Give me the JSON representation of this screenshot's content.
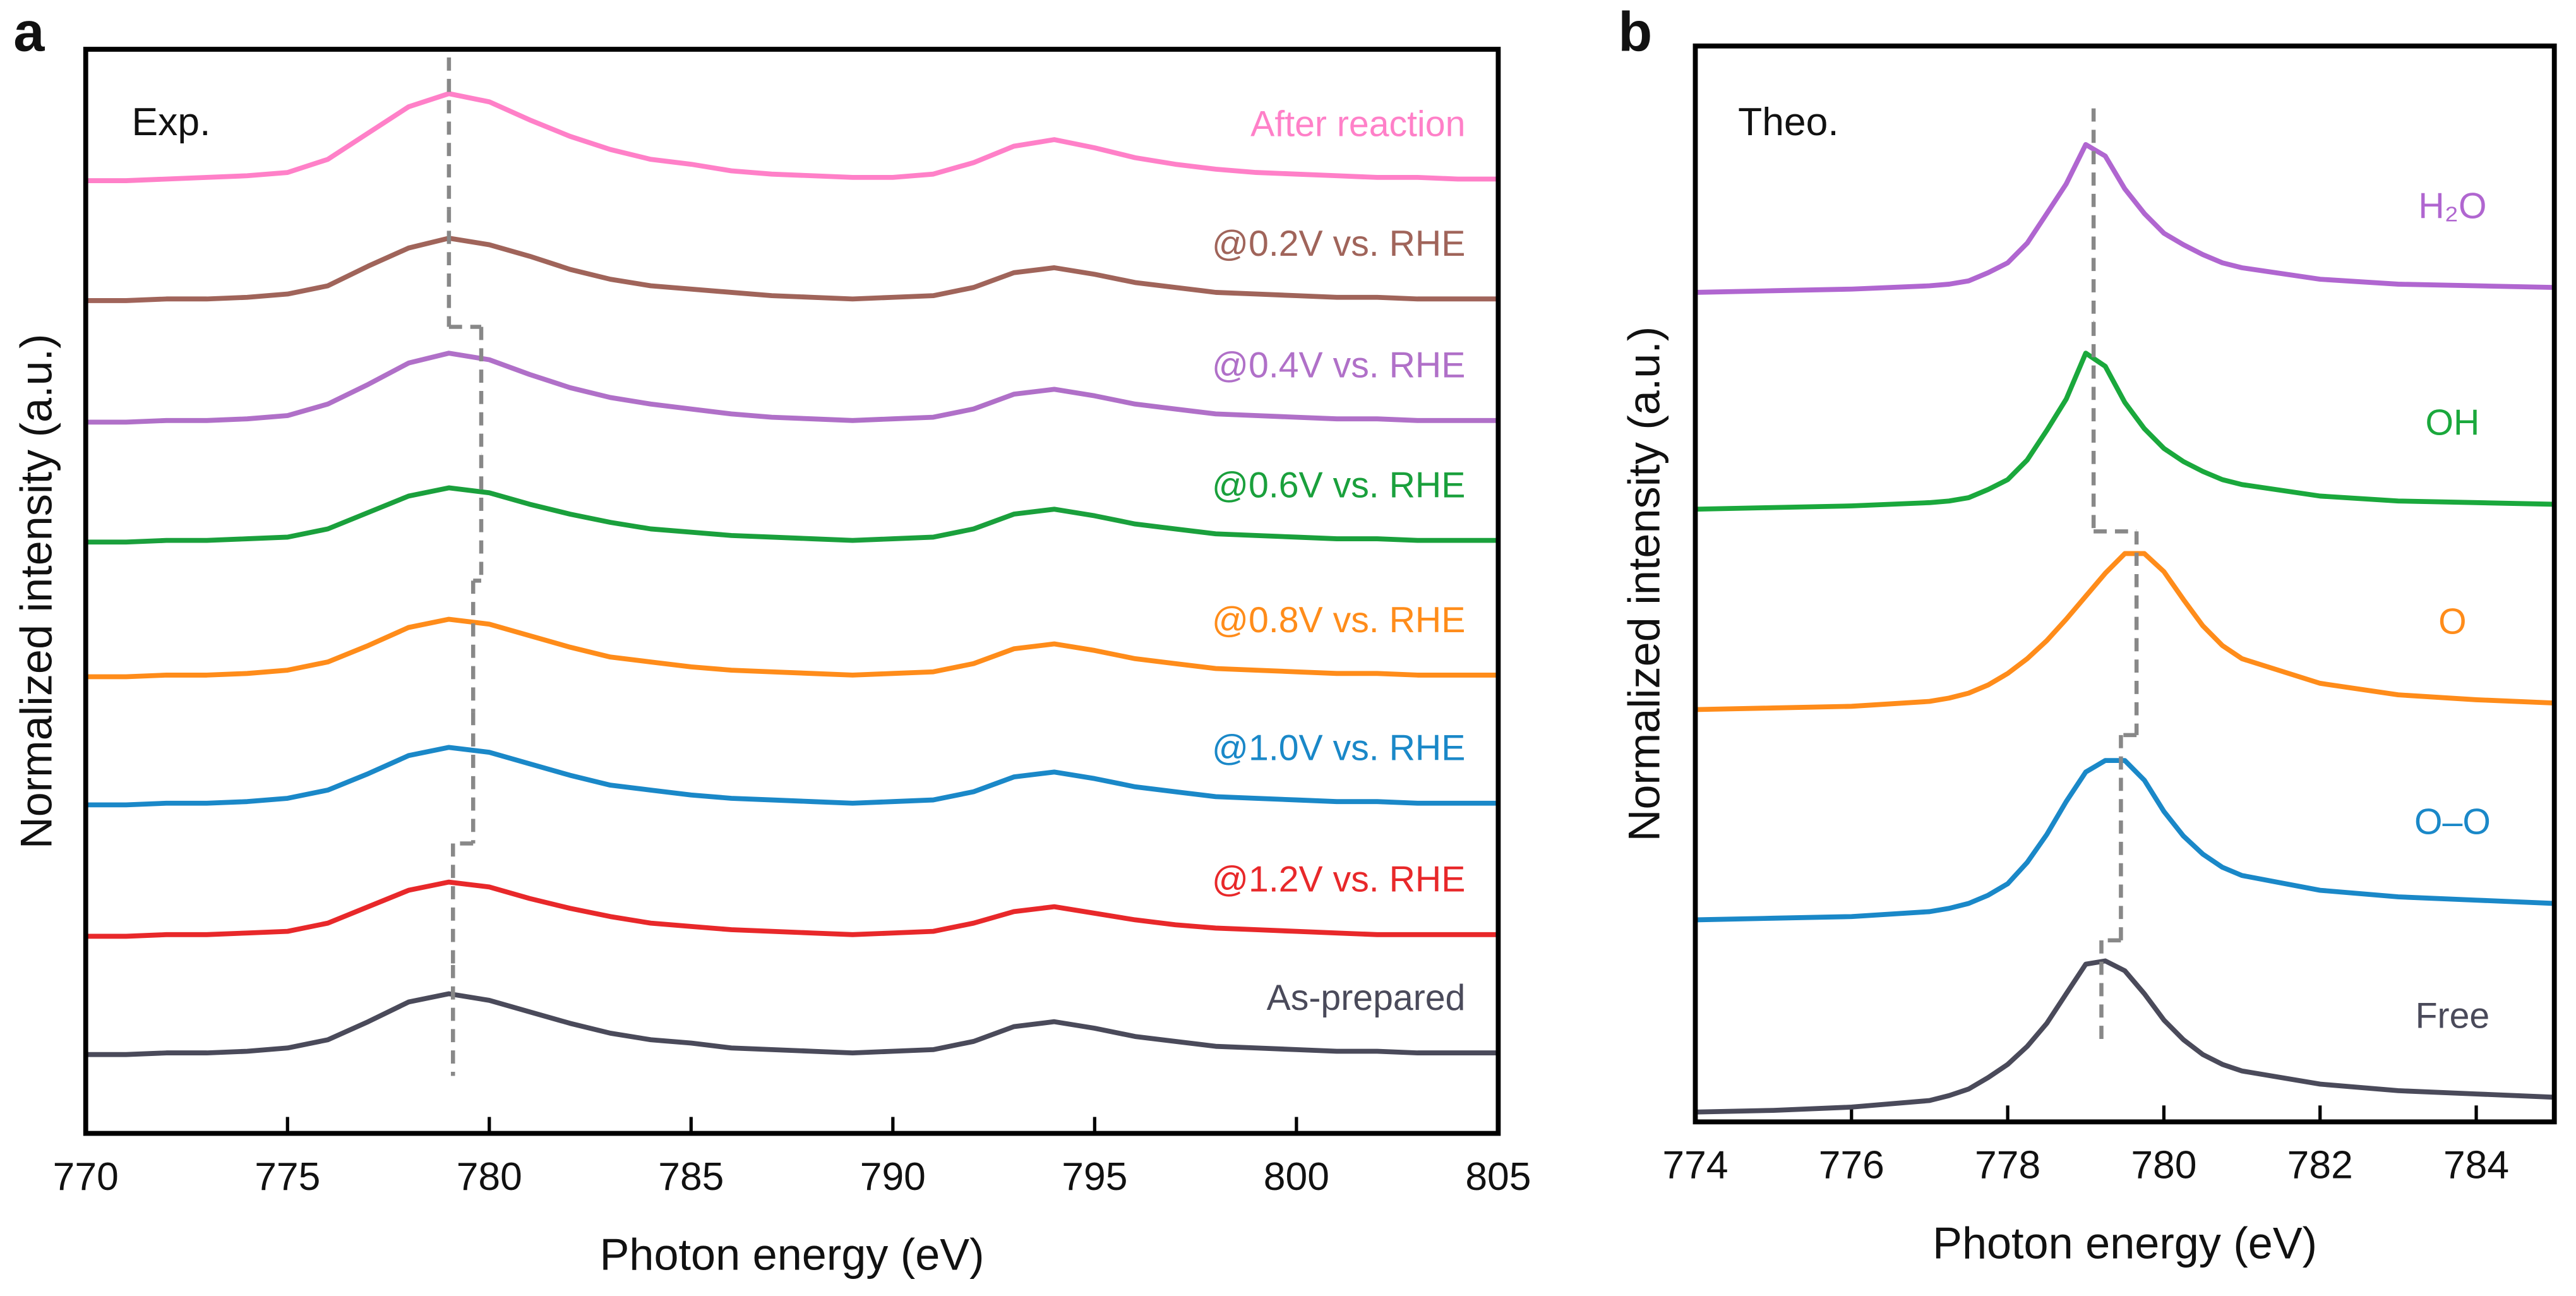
{
  "chart_data": [
    {
      "type": "line",
      "panel_label": "a",
      "annotation": "Exp.",
      "xlabel": "Photon energy (eV)",
      "ylabel": "Normalized intensity (a.u.)",
      "xlim": [
        770,
        805
      ],
      "ylim": [
        0,
        66
      ],
      "xticks": [
        770,
        775,
        780,
        785,
        790,
        795,
        800,
        805
      ],
      "x": [
        770,
        771,
        772,
        773,
        774,
        775,
        776,
        777,
        778,
        779,
        780,
        781,
        782,
        783,
        784,
        785,
        786,
        787,
        788,
        789,
        790,
        791,
        792,
        793,
        794,
        795,
        796,
        797,
        798,
        799,
        800,
        801,
        802,
        803,
        804,
        805
      ],
      "series": [
        {
          "name": "After reaction",
          "color": "#ff80c8",
          "peak_energy": 779.0,
          "values": [
            58.0,
            58.0,
            58.1,
            58.2,
            58.3,
            58.5,
            59.3,
            60.9,
            62.5,
            63.3,
            62.8,
            61.7,
            60.7,
            59.9,
            59.3,
            59.0,
            58.6,
            58.4,
            58.3,
            58.2,
            58.2,
            58.4,
            59.1,
            60.1,
            60.5,
            60.0,
            59.4,
            59.0,
            58.7,
            58.5,
            58.4,
            58.3,
            58.2,
            58.2,
            58.1,
            58.1
          ]
        },
        {
          "name": "@0.2V vs. RHE",
          "color": "#a0645a",
          "peak_energy": 779.0,
          "values": [
            50.7,
            50.7,
            50.8,
            50.8,
            50.9,
            51.1,
            51.6,
            52.8,
            53.9,
            54.5,
            54.1,
            53.4,
            52.6,
            52.0,
            51.6,
            51.4,
            51.2,
            51.0,
            50.9,
            50.8,
            50.9,
            51.0,
            51.5,
            52.4,
            52.7,
            52.3,
            51.8,
            51.5,
            51.2,
            51.1,
            51.0,
            50.9,
            50.9,
            50.8,
            50.8,
            50.8
          ]
        },
        {
          "name": "@0.4V vs. RHE",
          "color": "#b070c8",
          "peak_energy": 779.8,
          "values": [
            43.3,
            43.3,
            43.4,
            43.4,
            43.5,
            43.7,
            44.4,
            45.6,
            46.9,
            47.5,
            47.1,
            46.2,
            45.4,
            44.8,
            44.4,
            44.1,
            43.8,
            43.6,
            43.5,
            43.4,
            43.5,
            43.6,
            44.1,
            45.0,
            45.3,
            44.9,
            44.4,
            44.1,
            43.8,
            43.7,
            43.6,
            43.5,
            43.5,
            43.4,
            43.4,
            43.4
          ]
        },
        {
          "name": "@0.6V vs. RHE",
          "color": "#1aa03c",
          "peak_energy": 779.8,
          "values": [
            36.0,
            36.0,
            36.1,
            36.1,
            36.2,
            36.3,
            36.8,
            37.8,
            38.8,
            39.3,
            39.0,
            38.3,
            37.7,
            37.2,
            36.8,
            36.6,
            36.4,
            36.3,
            36.2,
            36.1,
            36.2,
            36.3,
            36.8,
            37.7,
            38.0,
            37.6,
            37.1,
            36.8,
            36.5,
            36.4,
            36.3,
            36.2,
            36.2,
            36.1,
            36.1,
            36.1
          ]
        },
        {
          "name": "@0.8V vs. RHE",
          "color": "#ff8c1a",
          "peak_energy": 779.6,
          "values": [
            27.8,
            27.8,
            27.9,
            27.9,
            28.0,
            28.2,
            28.7,
            29.7,
            30.8,
            31.3,
            31.0,
            30.3,
            29.6,
            29.0,
            28.7,
            28.4,
            28.2,
            28.1,
            28.0,
            27.9,
            28.0,
            28.1,
            28.6,
            29.5,
            29.8,
            29.4,
            28.9,
            28.6,
            28.3,
            28.2,
            28.1,
            28.0,
            28.0,
            27.9,
            27.9,
            27.9
          ]
        },
        {
          "name": "@1.0V vs. RHE",
          "color": "#1a88c8",
          "peak_energy": 779.6,
          "values": [
            20.0,
            20.0,
            20.1,
            20.1,
            20.2,
            20.4,
            20.9,
            21.9,
            23.0,
            23.5,
            23.2,
            22.5,
            21.8,
            21.2,
            20.9,
            20.6,
            20.4,
            20.3,
            20.2,
            20.1,
            20.2,
            20.3,
            20.8,
            21.7,
            22.0,
            21.6,
            21.1,
            20.8,
            20.5,
            20.4,
            20.3,
            20.2,
            20.2,
            20.1,
            20.1,
            20.1
          ]
        },
        {
          "name": "@1.2V vs. RHE",
          "color": "#e8282a",
          "peak_energy": 779.1,
          "values": [
            12.0,
            12.0,
            12.1,
            12.1,
            12.2,
            12.3,
            12.8,
            13.8,
            14.8,
            15.3,
            15.0,
            14.3,
            13.7,
            13.2,
            12.8,
            12.6,
            12.4,
            12.3,
            12.2,
            12.1,
            12.2,
            12.3,
            12.8,
            13.5,
            13.8,
            13.4,
            13.0,
            12.7,
            12.5,
            12.4,
            12.3,
            12.2,
            12.1,
            12.1,
            12.1,
            12.1
          ]
        },
        {
          "name": "As-prepared",
          "color": "#4a4a5a",
          "peak_energy": 779.1,
          "values": [
            4.8,
            4.8,
            4.9,
            4.9,
            5.0,
            5.2,
            5.7,
            6.8,
            8.0,
            8.5,
            8.1,
            7.4,
            6.7,
            6.1,
            5.7,
            5.5,
            5.2,
            5.1,
            5.0,
            4.9,
            5.0,
            5.1,
            5.6,
            6.5,
            6.8,
            6.4,
            5.9,
            5.6,
            5.3,
            5.2,
            5.1,
            5.0,
            5.0,
            4.9,
            4.9,
            4.9
          ]
        }
      ]
    },
    {
      "type": "line",
      "panel_label": "b",
      "annotation": "Theo.",
      "xlabel": "Photon energy (eV)",
      "ylabel": "Normalized intensity (a.u.)",
      "xlim": [
        774,
        785
      ],
      "ylim": [
        0,
        65.5
      ],
      "xticks": [
        774,
        776,
        778,
        780,
        782,
        784
      ],
      "x": [
        774,
        775,
        776,
        777,
        777.25,
        777.5,
        777.75,
        778,
        778.25,
        778.5,
        778.75,
        779,
        779.25,
        779.5,
        779.75,
        780,
        780.25,
        780.5,
        780.75,
        781,
        782,
        783,
        784,
        785
      ],
      "series": [
        {
          "name": "H₂O",
          "color": "#b066d0",
          "peak_energy": 779.1,
          "values": [
            50.5,
            50.6,
            50.7,
            50.9,
            51.0,
            51.2,
            51.7,
            52.3,
            53.5,
            55.3,
            57.1,
            59.5,
            58.8,
            56.8,
            55.3,
            54.1,
            53.4,
            52.8,
            52.3,
            52.0,
            51.3,
            51.0,
            50.9,
            50.8
          ]
        },
        {
          "name": "OH",
          "color": "#1aa83c",
          "peak_energy": 779.1,
          "values": [
            37.3,
            37.4,
            37.5,
            37.7,
            37.8,
            38.0,
            38.5,
            39.1,
            40.3,
            42.1,
            44.0,
            46.8,
            46.0,
            43.8,
            42.2,
            41.0,
            40.2,
            39.6,
            39.1,
            38.8,
            38.1,
            37.8,
            37.7,
            37.6
          ]
        },
        {
          "name": "O",
          "color": "#ff8c1a",
          "peak_energy": 779.65,
          "values": [
            25.1,
            25.2,
            25.3,
            25.6,
            25.8,
            26.1,
            26.6,
            27.3,
            28.2,
            29.3,
            30.6,
            32.0,
            33.4,
            34.6,
            34.6,
            33.5,
            31.8,
            30.2,
            29.0,
            28.2,
            26.7,
            26.0,
            25.7,
            25.5
          ]
        },
        {
          "name": "O–O",
          "color": "#1a88c8",
          "peak_energy": 779.45,
          "values": [
            12.3,
            12.4,
            12.5,
            12.8,
            13.0,
            13.3,
            13.8,
            14.5,
            15.8,
            17.5,
            19.5,
            21.3,
            22.0,
            22.0,
            20.8,
            18.9,
            17.4,
            16.3,
            15.5,
            15.0,
            14.1,
            13.7,
            13.5,
            13.3
          ]
        },
        {
          "name": "Free",
          "color": "#4a4a5a",
          "peak_energy": 779.2,
          "values": [
            0.6,
            0.7,
            0.9,
            1.3,
            1.6,
            2.0,
            2.7,
            3.5,
            4.6,
            6.0,
            7.8,
            9.6,
            9.8,
            9.2,
            7.8,
            6.2,
            5.0,
            4.1,
            3.5,
            3.1,
            2.3,
            1.9,
            1.7,
            1.5
          ]
        }
      ]
    }
  ]
}
